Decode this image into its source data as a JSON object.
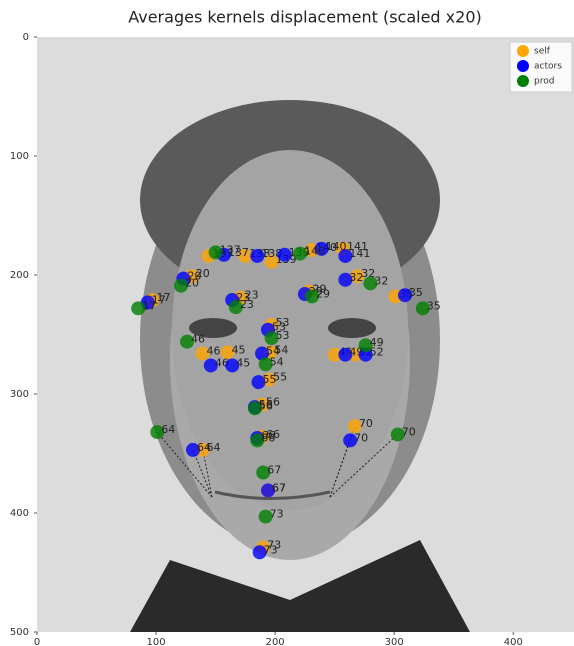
{
  "chart_data": {
    "type": "scatter",
    "title": "Averages kernels displacement (scaled x20)",
    "xlim": [
      0,
      451
    ],
    "ylim": [
      500,
      0
    ],
    "xticks": [
      0,
      100,
      200,
      300,
      400
    ],
    "yticks": [
      0,
      100,
      200,
      300,
      400,
      500
    ],
    "legend": "upper right",
    "series": [
      {
        "name": "self",
        "color": "#ffa500",
        "x": [
          144,
          175,
          197,
          231,
          257,
          130,
          97,
          171,
          228,
          269,
          301,
          139,
          160,
          197,
          196,
          195,
          189,
          250,
          267,
          139,
          189,
          267,
          194,
          190
        ],
        "values": [
          184,
          184,
          189,
          179,
          178,
          201,
          221,
          219,
          214,
          201,
          218,
          266,
          265,
          242,
          265,
          288,
          309,
          267,
          267,
          347,
          336,
          327,
          381,
          429
        ],
        "labels": [
          "137",
          "138",
          "139",
          "140",
          "141",
          "20",
          "17",
          "23",
          "29",
          "32",
          "35",
          "46",
          "45",
          "53",
          "54",
          "55",
          "56",
          "49",
          "52",
          "64",
          "66",
          "70",
          "67",
          "73"
        ]
      },
      {
        "name": "actors",
        "color": "#0000ff",
        "x": [
          157,
          185,
          208,
          239,
          259,
          123,
          93,
          164,
          225,
          259,
          309,
          146,
          164,
          194,
          189,
          186,
          183,
          259,
          276,
          131,
          185,
          263,
          194,
          187
        ],
        "values": [
          183,
          184,
          183,
          178,
          184,
          203,
          223,
          221,
          216,
          204,
          217,
          276,
          276,
          246,
          266,
          290,
          311,
          267,
          267,
          347,
          337,
          339,
          381,
          433
        ],
        "labels": [
          "137",
          "138",
          "139",
          "140",
          "141",
          "20",
          "17",
          "23",
          "29",
          "32",
          "35",
          "46",
          "45",
          "53",
          "54",
          "55",
          "56",
          "49",
          "52",
          "64",
          "66",
          "70",
          "67",
          "73"
        ]
      },
      {
        "name": "prod",
        "color": "#008000",
        "x": [
          150,
          221,
          121,
          85,
          167,
          231,
          280,
          324,
          126,
          197,
          192,
          183,
          276,
          101,
          185,
          303,
          190,
          192
        ],
        "values": [
          181,
          182,
          209,
          228,
          227,
          218,
          207,
          228,
          256,
          253,
          275,
          312,
          259,
          332,
          339,
          334,
          366,
          403
        ],
        "labels": [
          "137",
          "140",
          "20",
          "17",
          "23",
          "29",
          "32",
          "35",
          "46",
          "53",
          "54",
          "56",
          "49",
          "64",
          "66",
          "70",
          "67",
          "73"
        ]
      }
    ]
  }
}
